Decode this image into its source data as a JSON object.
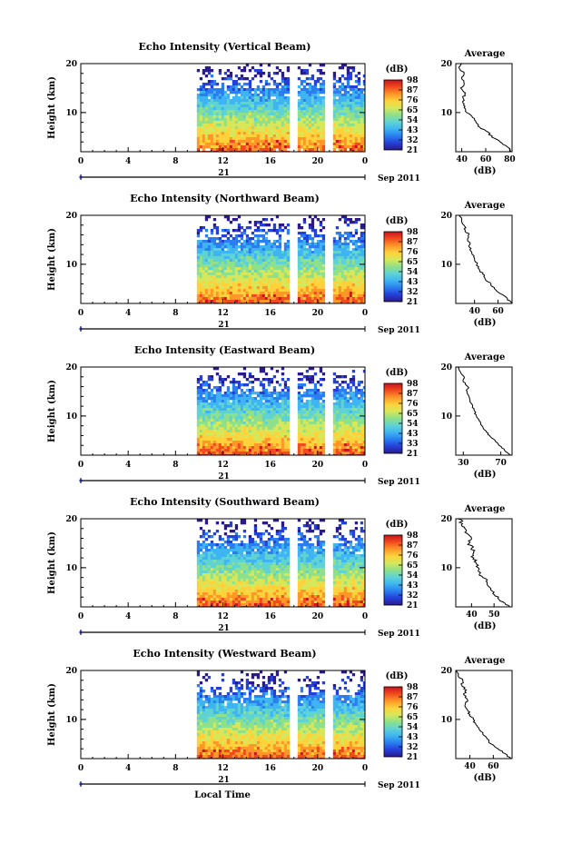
{
  "figure": {
    "bottom_label": "Local Time",
    "date_label": "Sep 2011",
    "day_label": "21",
    "colorbar_unit": "(dB)",
    "average_title": "Average",
    "average_xlabel": "(dB)",
    "height_label": "Height (km)"
  },
  "colors": {
    "ramp": [
      "#2b1a8c",
      "#2540d8",
      "#2a7ef0",
      "#3fb4f2",
      "#5fd3d3",
      "#8fe08a",
      "#d6e85a",
      "#ffd23c",
      "#ff9628",
      "#f04a1e",
      "#c8141e"
    ],
    "line": "#000000"
  },
  "chart_data": [
    {
      "type": "heatmap",
      "title": "Echo Intensity (Vertical Beam)",
      "xlabel": "",
      "ylabel": "Height (km)",
      "x_ticks": [
        "0",
        "4",
        "8",
        "12",
        "16",
        "20",
        "0"
      ],
      "y_ticks": [
        "10",
        "20"
      ],
      "xlim": [
        0,
        24
      ],
      "ylim": [
        2,
        20
      ],
      "data_start_hour": 9.8,
      "gaps_hours": [
        [
          17.6,
          18.1
        ],
        [
          20.6,
          21.1
        ]
      ],
      "colorbar": {
        "label": "(dB)",
        "ticks": [
          "98",
          "87",
          "76",
          "65",
          "54",
          "43",
          "32",
          "21"
        ],
        "range": [
          21,
          98
        ]
      },
      "average": {
        "title": "Average",
        "xlabel": "(dB)",
        "x_ticks": [
          "40",
          "60",
          "80"
        ],
        "y_ticks": [
          "10",
          "20"
        ],
        "xlim": [
          35,
          82
        ],
        "profile": [
          [
            2,
            81
          ],
          [
            3,
            78
          ],
          [
            4,
            72
          ],
          [
            5,
            65
          ],
          [
            6,
            62
          ],
          [
            7,
            55
          ],
          [
            8,
            52
          ],
          [
            9,
            49
          ],
          [
            10,
            44
          ],
          [
            11,
            42
          ],
          [
            12,
            41
          ],
          [
            13,
            41
          ],
          [
            14,
            43
          ],
          [
            15,
            39
          ],
          [
            16,
            42
          ],
          [
            17,
            40
          ],
          [
            18,
            42
          ],
          [
            19,
            38
          ],
          [
            20,
            40
          ]
        ]
      }
    },
    {
      "type": "heatmap",
      "title": "Echo Intensity (Northward Beam)",
      "xlabel": "",
      "ylabel": "Height (km)",
      "x_ticks": [
        "0",
        "4",
        "8",
        "12",
        "16",
        "20",
        "0"
      ],
      "y_ticks": [
        "10",
        "20"
      ],
      "xlim": [
        0,
        24
      ],
      "ylim": [
        2,
        20
      ],
      "data_start_hour": 9.8,
      "gaps_hours": [
        [
          17.6,
          18.1
        ],
        [
          20.6,
          21.1
        ]
      ],
      "colorbar": {
        "label": "(dB)",
        "ticks": [
          "98",
          "87",
          "76",
          "65",
          "54",
          "43",
          "32",
          "21"
        ],
        "range": [
          21,
          98
        ]
      },
      "average": {
        "title": "Average",
        "xlabel": "(dB)",
        "x_ticks": [
          "40",
          "60"
        ],
        "y_ticks": [
          "10",
          "20"
        ],
        "xlim": [
          24,
          72
        ],
        "profile": [
          [
            2,
            72
          ],
          [
            3,
            68
          ],
          [
            4,
            62
          ],
          [
            5,
            57
          ],
          [
            6,
            54
          ],
          [
            7,
            49
          ],
          [
            8,
            47
          ],
          [
            9,
            44
          ],
          [
            10,
            42
          ],
          [
            11,
            40
          ],
          [
            12,
            38
          ],
          [
            13,
            36
          ],
          [
            14,
            36
          ],
          [
            15,
            34
          ],
          [
            16,
            35
          ],
          [
            17,
            32
          ],
          [
            18,
            31
          ],
          [
            19,
            29
          ],
          [
            20,
            27
          ]
        ]
      }
    },
    {
      "type": "heatmap",
      "title": "Echo Intensity (Eastward Beam)",
      "xlabel": "",
      "ylabel": "Height (km)",
      "x_ticks": [
        "0",
        "4",
        "8",
        "12",
        "16",
        "20",
        "0"
      ],
      "y_ticks": [
        "10",
        "20"
      ],
      "xlim": [
        0,
        24
      ],
      "ylim": [
        2,
        20
      ],
      "data_start_hour": 9.8,
      "gaps_hours": [
        [
          17.6,
          18.1
        ],
        [
          20.6,
          21.1
        ]
      ],
      "colorbar": {
        "label": "(dB)",
        "ticks": [
          "98",
          "87",
          "76",
          "65",
          "54",
          "43",
          "33",
          "21"
        ],
        "range": [
          21,
          98
        ]
      },
      "average": {
        "title": "Average",
        "xlabel": "(dB)",
        "x_ticks": [
          "30",
          "70"
        ],
        "y_ticks": [
          "10",
          "20"
        ],
        "xlim": [
          22,
          82
        ],
        "profile": [
          [
            2,
            80
          ],
          [
            3,
            74
          ],
          [
            4,
            68
          ],
          [
            5,
            64
          ],
          [
            6,
            58
          ],
          [
            7,
            54
          ],
          [
            8,
            50
          ],
          [
            9,
            47
          ],
          [
            10,
            44
          ],
          [
            11,
            42
          ],
          [
            12,
            40
          ],
          [
            13,
            37
          ],
          [
            14,
            36
          ],
          [
            15,
            34
          ],
          [
            16,
            35
          ],
          [
            17,
            30
          ],
          [
            18,
            31
          ],
          [
            19,
            27
          ],
          [
            20,
            24
          ]
        ]
      }
    },
    {
      "type": "heatmap",
      "title": "Echo Intensity (Southward Beam)",
      "xlabel": "",
      "ylabel": "Height (km)",
      "x_ticks": [
        "0",
        "4",
        "8",
        "12",
        "16",
        "20",
        "0"
      ],
      "y_ticks": [
        "10",
        "20"
      ],
      "xlim": [
        0,
        24
      ],
      "ylim": [
        2,
        20
      ],
      "data_start_hour": 9.8,
      "gaps_hours": [
        [
          17.6,
          18.1
        ],
        [
          20.6,
          21.1
        ]
      ],
      "colorbar": {
        "label": "(dB)",
        "ticks": [
          "98",
          "87",
          "76",
          "65",
          "54",
          "43",
          "32",
          "21"
        ],
        "range": [
          21,
          98
        ]
      },
      "average": {
        "title": "Average",
        "xlabel": "(dB)",
        "x_ticks": [
          "40",
          "50"
        ],
        "y_ticks": [
          "10",
          "20"
        ],
        "xlim": [
          33,
          58
        ],
        "profile": [
          [
            2,
            57
          ],
          [
            3,
            54
          ],
          [
            4,
            52
          ],
          [
            5,
            50
          ],
          [
            6,
            48
          ],
          [
            7,
            47
          ],
          [
            8,
            45
          ],
          [
            9,
            44
          ],
          [
            10,
            43
          ],
          [
            11,
            42
          ],
          [
            12,
            41
          ],
          [
            13,
            41
          ],
          [
            14,
            40
          ],
          [
            15,
            39
          ],
          [
            16,
            40
          ],
          [
            17,
            38
          ],
          [
            18,
            37
          ],
          [
            19,
            36
          ],
          [
            20,
            34
          ]
        ]
      }
    },
    {
      "type": "heatmap",
      "title": "Echo Intensity (Westward Beam)",
      "xlabel": "Local Time",
      "ylabel": "Height (km)",
      "x_ticks": [
        "0",
        "4",
        "8",
        "12",
        "16",
        "20",
        "0"
      ],
      "y_ticks": [
        "10",
        "20"
      ],
      "xlim": [
        0,
        24
      ],
      "ylim": [
        2,
        20
      ],
      "data_start_hour": 9.8,
      "gaps_hours": [
        [
          17.6,
          18.1
        ],
        [
          20.6,
          21.1
        ]
      ],
      "colorbar": {
        "label": "(dB)",
        "ticks": [
          "98",
          "87",
          "76",
          "65",
          "54",
          "43",
          "32",
          "21"
        ],
        "range": [
          21,
          98
        ]
      },
      "average": {
        "title": "Average",
        "xlabel": "(dB)",
        "x_ticks": [
          "40",
          "60"
        ],
        "y_ticks": [
          "10",
          "20"
        ],
        "xlim": [
          28,
          76
        ],
        "profile": [
          [
            2,
            75
          ],
          [
            3,
            70
          ],
          [
            4,
            64
          ],
          [
            5,
            58
          ],
          [
            6,
            55
          ],
          [
            7,
            51
          ],
          [
            8,
            48
          ],
          [
            9,
            45
          ],
          [
            10,
            43
          ],
          [
            11,
            40
          ],
          [
            12,
            38
          ],
          [
            13,
            36
          ],
          [
            14,
            38
          ],
          [
            15,
            35
          ],
          [
            16,
            37
          ],
          [
            17,
            33
          ],
          [
            18,
            34
          ],
          [
            19,
            30
          ],
          [
            20,
            29
          ]
        ]
      }
    }
  ]
}
